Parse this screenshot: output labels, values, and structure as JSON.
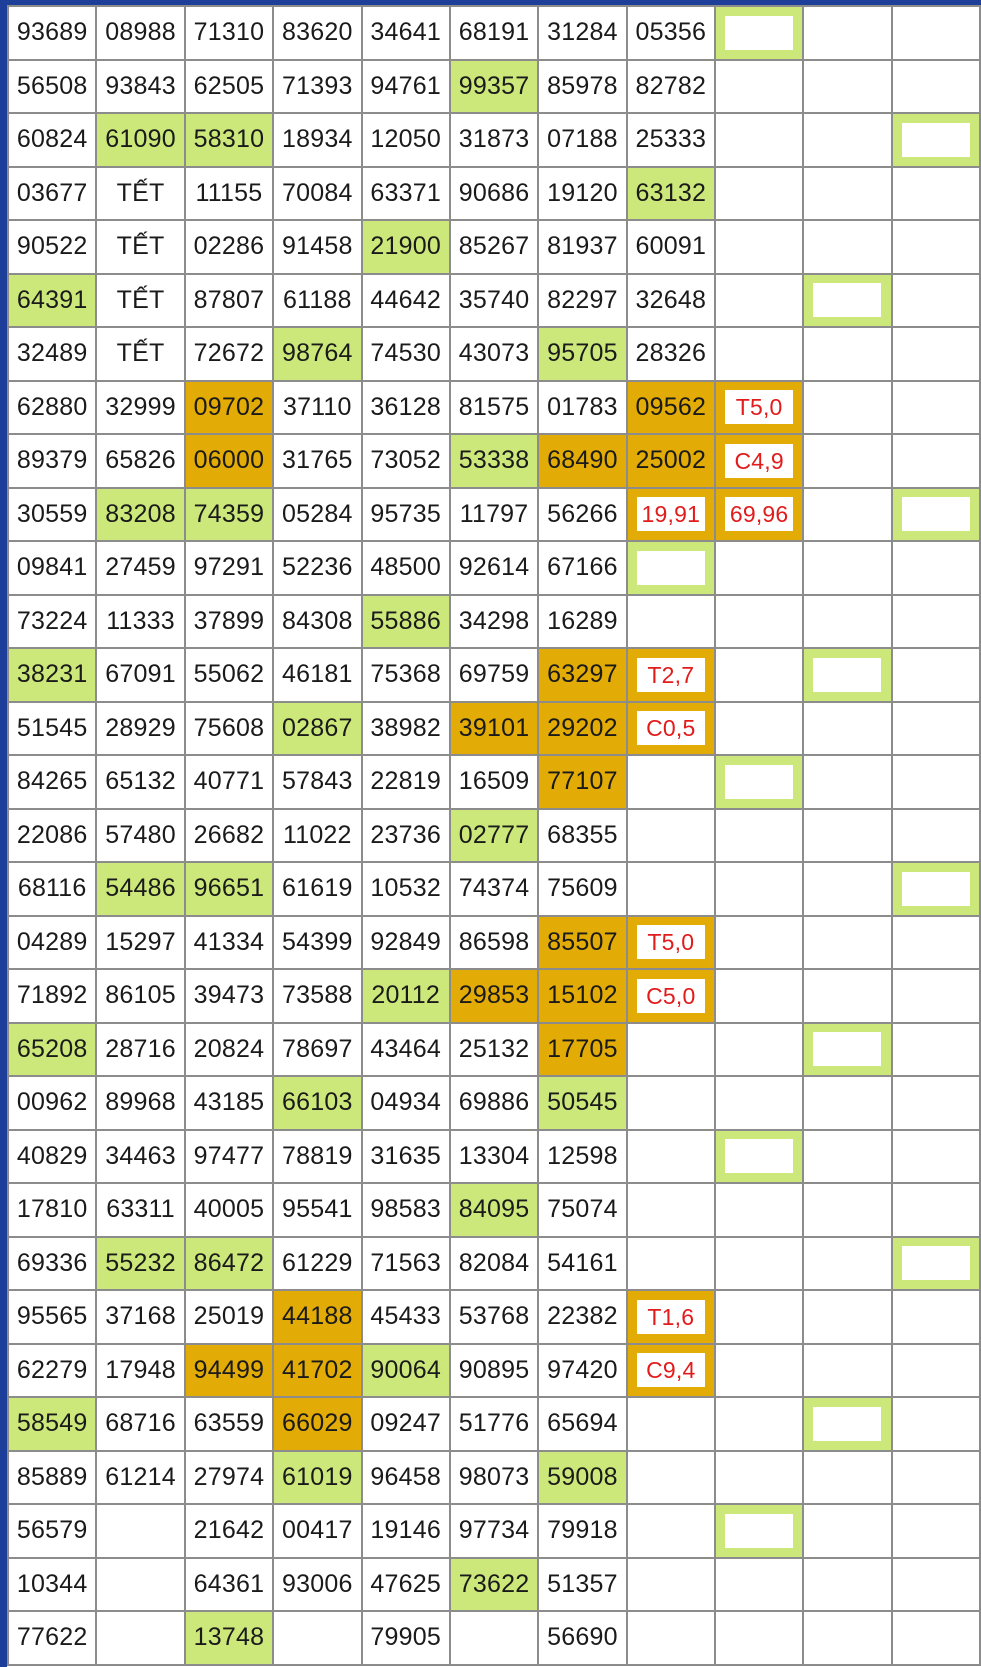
{
  "colors": {
    "highlight_green": "#cce87a",
    "highlight_orange": "#e2ab06",
    "marker_red": "#e21b1b",
    "frame_blue": "#1d3f9a"
  },
  "rows": [
    {
      "cells": [
        {
          "t": "93689"
        },
        {
          "t": "08988"
        },
        {
          "t": "71310"
        },
        {
          "t": "83620"
        },
        {
          "t": "34641"
        },
        {
          "t": "68191"
        },
        {
          "t": "31284"
        },
        {
          "t": "05356"
        },
        {
          "t": "",
          "bg": "g",
          "box": true
        },
        {
          "t": ""
        },
        {
          "t": ""
        }
      ]
    },
    {
      "cells": [
        {
          "t": "56508"
        },
        {
          "t": "93843"
        },
        {
          "t": "62505"
        },
        {
          "t": "71393"
        },
        {
          "t": "94761"
        },
        {
          "t": "99357",
          "bg": "g"
        },
        {
          "t": "85978"
        },
        {
          "t": "82782"
        },
        {
          "t": ""
        },
        {
          "t": ""
        },
        {
          "t": ""
        }
      ]
    },
    {
      "cells": [
        {
          "t": "60824"
        },
        {
          "t": "61090",
          "bg": "g"
        },
        {
          "t": "58310",
          "bg": "g"
        },
        {
          "t": "18934"
        },
        {
          "t": "12050"
        },
        {
          "t": "31873"
        },
        {
          "t": "07188"
        },
        {
          "t": "25333"
        },
        {
          "t": ""
        },
        {
          "t": ""
        },
        {
          "t": "",
          "bg": "g",
          "box": true
        }
      ]
    },
    {
      "cells": [
        {
          "t": "03677"
        },
        {
          "t": "TẾT",
          "red": true
        },
        {
          "t": "11155"
        },
        {
          "t": "70084"
        },
        {
          "t": "63371"
        },
        {
          "t": "90686"
        },
        {
          "t": "19120"
        },
        {
          "t": "63132",
          "bg": "g"
        },
        {
          "t": ""
        },
        {
          "t": ""
        },
        {
          "t": ""
        }
      ]
    },
    {
      "cells": [
        {
          "t": "90522"
        },
        {
          "t": "TẾT",
          "red": true
        },
        {
          "t": "02286"
        },
        {
          "t": "91458"
        },
        {
          "t": "21900",
          "bg": "g"
        },
        {
          "t": "85267"
        },
        {
          "t": "81937"
        },
        {
          "t": "60091"
        },
        {
          "t": ""
        },
        {
          "t": ""
        },
        {
          "t": ""
        }
      ]
    },
    {
      "cells": [
        {
          "t": "64391",
          "bg": "g"
        },
        {
          "t": "TẾT",
          "red": true
        },
        {
          "t": "87807"
        },
        {
          "t": "61188"
        },
        {
          "t": "44642"
        },
        {
          "t": "35740"
        },
        {
          "t": "82297"
        },
        {
          "t": "32648"
        },
        {
          "t": ""
        },
        {
          "t": "",
          "bg": "g",
          "box": true
        },
        {
          "t": ""
        }
      ]
    },
    {
      "cells": [
        {
          "t": "32489"
        },
        {
          "t": "TẾT",
          "red": true
        },
        {
          "t": "72672"
        },
        {
          "t": "98764",
          "bg": "g"
        },
        {
          "t": "74530"
        },
        {
          "t": "43073"
        },
        {
          "t": "95705",
          "bg": "g"
        },
        {
          "t": "28326"
        },
        {
          "t": ""
        },
        {
          "t": ""
        },
        {
          "t": ""
        }
      ]
    },
    {
      "cells": [
        {
          "t": "62880"
        },
        {
          "t": "32999"
        },
        {
          "t": "09702",
          "bg": "o"
        },
        {
          "t": "37110"
        },
        {
          "t": "36128"
        },
        {
          "t": "81575"
        },
        {
          "t": "01783"
        },
        {
          "t": "09562",
          "bg": "o"
        },
        {
          "t": "T5,0",
          "bg": "o",
          "badge": true
        },
        {
          "t": ""
        },
        {
          "t": ""
        }
      ]
    },
    {
      "cells": [
        {
          "t": "89379"
        },
        {
          "t": "65826"
        },
        {
          "t": "06000",
          "bg": "o"
        },
        {
          "t": "31765"
        },
        {
          "t": "73052"
        },
        {
          "t": "53338",
          "bg": "g"
        },
        {
          "t": "68490",
          "bg": "o"
        },
        {
          "t": "25002",
          "bg": "o"
        },
        {
          "t": "C4,9",
          "bg": "o",
          "badge": true
        },
        {
          "t": ""
        },
        {
          "t": ""
        }
      ]
    },
    {
      "cells": [
        {
          "t": "30559"
        },
        {
          "t": "83208",
          "bg": "g"
        },
        {
          "t": "74359",
          "bg": "g"
        },
        {
          "t": "05284"
        },
        {
          "t": "95735"
        },
        {
          "t": "11797"
        },
        {
          "t": "56266"
        },
        {
          "t": "19,91",
          "bg": "o",
          "badge": true
        },
        {
          "t": "69,96",
          "bg": "o",
          "badge": true
        },
        {
          "t": ""
        },
        {
          "t": "",
          "bg": "g",
          "box": true
        }
      ]
    },
    {
      "cells": [
        {
          "t": "09841"
        },
        {
          "t": "27459"
        },
        {
          "t": "97291"
        },
        {
          "t": "52236"
        },
        {
          "t": "48500"
        },
        {
          "t": "92614"
        },
        {
          "t": "67166"
        },
        {
          "t": "",
          "bg": "g",
          "box": true
        },
        {
          "t": ""
        },
        {
          "t": ""
        },
        {
          "t": ""
        }
      ]
    },
    {
      "cells": [
        {
          "t": "73224"
        },
        {
          "t": "11333"
        },
        {
          "t": "37899"
        },
        {
          "t": "84308"
        },
        {
          "t": "55886",
          "bg": "g"
        },
        {
          "t": "34298"
        },
        {
          "t": "16289"
        },
        {
          "t": ""
        },
        {
          "t": ""
        },
        {
          "t": ""
        },
        {
          "t": ""
        }
      ]
    },
    {
      "cells": [
        {
          "t": "38231",
          "bg": "g"
        },
        {
          "t": "67091"
        },
        {
          "t": "55062"
        },
        {
          "t": "46181"
        },
        {
          "t": "75368"
        },
        {
          "t": "69759"
        },
        {
          "t": "63297",
          "bg": "o"
        },
        {
          "t": "T2,7",
          "bg": "o",
          "badge": true
        },
        {
          "t": ""
        },
        {
          "t": "",
          "bg": "g",
          "box": true
        },
        {
          "t": ""
        }
      ]
    },
    {
      "cells": [
        {
          "t": "51545"
        },
        {
          "t": "28929"
        },
        {
          "t": "75608"
        },
        {
          "t": "02867",
          "bg": "g"
        },
        {
          "t": "38982"
        },
        {
          "t": "39101",
          "bg": "o"
        },
        {
          "t": "29202",
          "bg": "o"
        },
        {
          "t": "C0,5",
          "bg": "o",
          "badge": true
        },
        {
          "t": ""
        },
        {
          "t": ""
        },
        {
          "t": ""
        }
      ]
    },
    {
      "cells": [
        {
          "t": "84265"
        },
        {
          "t": "65132"
        },
        {
          "t": "40771"
        },
        {
          "t": "57843"
        },
        {
          "t": "22819"
        },
        {
          "t": "16509"
        },
        {
          "t": "77107",
          "bg": "o"
        },
        {
          "t": ""
        },
        {
          "t": "",
          "bg": "g",
          "box": true
        },
        {
          "t": ""
        },
        {
          "t": ""
        }
      ]
    },
    {
      "cells": [
        {
          "t": "22086"
        },
        {
          "t": "57480"
        },
        {
          "t": "26682"
        },
        {
          "t": "11022"
        },
        {
          "t": "23736"
        },
        {
          "t": "02777",
          "bg": "g"
        },
        {
          "t": "68355"
        },
        {
          "t": ""
        },
        {
          "t": ""
        },
        {
          "t": ""
        },
        {
          "t": ""
        }
      ]
    },
    {
      "cells": [
        {
          "t": "68116"
        },
        {
          "t": "54486",
          "bg": "g"
        },
        {
          "t": "96651",
          "bg": "g"
        },
        {
          "t": "61619"
        },
        {
          "t": "10532"
        },
        {
          "t": "74374"
        },
        {
          "t": "75609"
        },
        {
          "t": ""
        },
        {
          "t": ""
        },
        {
          "t": ""
        },
        {
          "t": "",
          "bg": "g",
          "box": true
        }
      ]
    },
    {
      "cells": [
        {
          "t": "04289"
        },
        {
          "t": "15297"
        },
        {
          "t": "41334"
        },
        {
          "t": "54399"
        },
        {
          "t": "92849"
        },
        {
          "t": "86598"
        },
        {
          "t": "85507",
          "bg": "o"
        },
        {
          "t": "T5,0",
          "bg": "o",
          "badge": true
        },
        {
          "t": ""
        },
        {
          "t": ""
        },
        {
          "t": ""
        }
      ]
    },
    {
      "cells": [
        {
          "t": "71892"
        },
        {
          "t": "86105"
        },
        {
          "t": "39473"
        },
        {
          "t": "73588"
        },
        {
          "t": "20112",
          "bg": "g"
        },
        {
          "t": "29853",
          "bg": "o"
        },
        {
          "t": "15102",
          "bg": "o"
        },
        {
          "t": "C5,0",
          "bg": "o",
          "badge": true
        },
        {
          "t": ""
        },
        {
          "t": ""
        },
        {
          "t": ""
        }
      ]
    },
    {
      "cells": [
        {
          "t": "65208",
          "bg": "g"
        },
        {
          "t": "28716"
        },
        {
          "t": "20824"
        },
        {
          "t": "78697"
        },
        {
          "t": "43464"
        },
        {
          "t": "25132"
        },
        {
          "t": "17705",
          "bg": "o"
        },
        {
          "t": ""
        },
        {
          "t": ""
        },
        {
          "t": "",
          "bg": "g",
          "box": true
        },
        {
          "t": ""
        }
      ]
    },
    {
      "cells": [
        {
          "t": "00962"
        },
        {
          "t": "89968"
        },
        {
          "t": "43185"
        },
        {
          "t": "66103",
          "bg": "g"
        },
        {
          "t": "04934"
        },
        {
          "t": "69886"
        },
        {
          "t": "50545",
          "bg": "g"
        },
        {
          "t": ""
        },
        {
          "t": ""
        },
        {
          "t": ""
        },
        {
          "t": ""
        }
      ]
    },
    {
      "cells": [
        {
          "t": "40829"
        },
        {
          "t": "34463"
        },
        {
          "t": "97477"
        },
        {
          "t": "78819"
        },
        {
          "t": "31635"
        },
        {
          "t": "13304"
        },
        {
          "t": "12598"
        },
        {
          "t": ""
        },
        {
          "t": "",
          "bg": "g",
          "box": true
        },
        {
          "t": ""
        },
        {
          "t": ""
        }
      ]
    },
    {
      "cells": [
        {
          "t": "17810"
        },
        {
          "t": "63311"
        },
        {
          "t": "40005"
        },
        {
          "t": "95541"
        },
        {
          "t": "98583"
        },
        {
          "t": "84095",
          "bg": "g"
        },
        {
          "t": "75074"
        },
        {
          "t": ""
        },
        {
          "t": ""
        },
        {
          "t": ""
        },
        {
          "t": ""
        }
      ]
    },
    {
      "cells": [
        {
          "t": "69336"
        },
        {
          "t": "55232",
          "bg": "g"
        },
        {
          "t": "86472",
          "bg": "g"
        },
        {
          "t": "61229"
        },
        {
          "t": "71563"
        },
        {
          "t": "82084"
        },
        {
          "t": "54161"
        },
        {
          "t": ""
        },
        {
          "t": ""
        },
        {
          "t": ""
        },
        {
          "t": "",
          "bg": "g",
          "box": true
        }
      ]
    },
    {
      "cells": [
        {
          "t": "95565"
        },
        {
          "t": "37168"
        },
        {
          "t": "25019"
        },
        {
          "t": "44188",
          "bg": "o"
        },
        {
          "t": "45433"
        },
        {
          "t": "53768"
        },
        {
          "t": "22382"
        },
        {
          "t": "T1,6",
          "bg": "o",
          "badge": true
        },
        {
          "t": ""
        },
        {
          "t": ""
        },
        {
          "t": ""
        }
      ]
    },
    {
      "cells": [
        {
          "t": "62279"
        },
        {
          "t": "17948"
        },
        {
          "t": "94499",
          "bg": "o"
        },
        {
          "t": "41702",
          "bg": "o"
        },
        {
          "t": "90064",
          "bg": "g"
        },
        {
          "t": "90895"
        },
        {
          "t": "97420"
        },
        {
          "t": "C9,4",
          "bg": "o",
          "badge": true
        },
        {
          "t": ""
        },
        {
          "t": ""
        },
        {
          "t": ""
        }
      ]
    },
    {
      "cells": [
        {
          "t": "58549",
          "bg": "g"
        },
        {
          "t": "68716"
        },
        {
          "t": "63559"
        },
        {
          "t": "66029",
          "bg": "o"
        },
        {
          "t": "09247"
        },
        {
          "t": "51776"
        },
        {
          "t": "65694"
        },
        {
          "t": ""
        },
        {
          "t": ""
        },
        {
          "t": "",
          "bg": "g",
          "box": true
        },
        {
          "t": ""
        }
      ]
    },
    {
      "cells": [
        {
          "t": "85889"
        },
        {
          "t": "61214"
        },
        {
          "t": "27974"
        },
        {
          "t": "61019",
          "bg": "g"
        },
        {
          "t": "96458"
        },
        {
          "t": "98073"
        },
        {
          "t": "59008",
          "bg": "g"
        },
        {
          "t": ""
        },
        {
          "t": ""
        },
        {
          "t": ""
        },
        {
          "t": ""
        }
      ]
    },
    {
      "cells": [
        {
          "t": "56579"
        },
        {
          "t": ""
        },
        {
          "t": "21642"
        },
        {
          "t": "00417"
        },
        {
          "t": "19146"
        },
        {
          "t": "97734"
        },
        {
          "t": "79918"
        },
        {
          "t": ""
        },
        {
          "t": "",
          "bg": "g",
          "box": true
        },
        {
          "t": ""
        },
        {
          "t": ""
        }
      ]
    },
    {
      "cells": [
        {
          "t": "10344"
        },
        {
          "t": ""
        },
        {
          "t": "64361"
        },
        {
          "t": "93006"
        },
        {
          "t": "47625"
        },
        {
          "t": "73622",
          "bg": "g"
        },
        {
          "t": "51357"
        },
        {
          "t": ""
        },
        {
          "t": ""
        },
        {
          "t": ""
        },
        {
          "t": ""
        }
      ]
    },
    {
      "cells": [
        {
          "t": "77622"
        },
        {
          "t": ""
        },
        {
          "t": "13748",
          "bg": "g"
        },
        {
          "t": ""
        },
        {
          "t": "79905"
        },
        {
          "t": ""
        },
        {
          "t": "56690"
        },
        {
          "t": ""
        },
        {
          "t": ""
        },
        {
          "t": ""
        },
        {
          "t": ""
        }
      ]
    }
  ]
}
